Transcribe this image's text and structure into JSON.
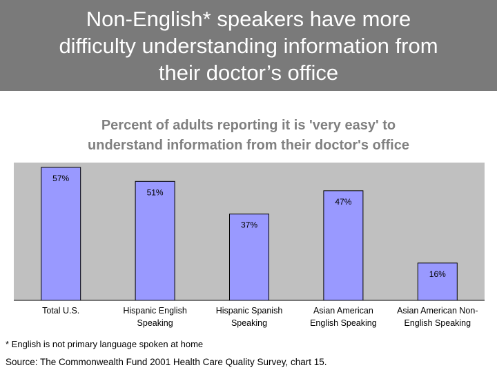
{
  "header": {
    "title_line1": "Non-English* speakers have more",
    "title_line2": "difficulty understanding information from",
    "title_line3": "their doctor’s office"
  },
  "chart_data": {
    "type": "bar",
    "title_line1": "Percent of adults reporting it is 'very easy' to",
    "title_line2": "understand information from their doctor's office",
    "categories": [
      [
        "Total U.S."
      ],
      [
        "Hispanic English",
        "Speaking"
      ],
      [
        "Hispanic Spanish",
        "Speaking"
      ],
      [
        "Asian American",
        "English Speaking"
      ],
      [
        "Asian American Non-",
        "English Speaking"
      ]
    ],
    "values": [
      57,
      51,
      37,
      47,
      16
    ],
    "value_labels": [
      "57%",
      "51%",
      "37%",
      "47%",
      "16%"
    ],
    "ylim": [
      0,
      60
    ],
    "grid": false,
    "legend": "none",
    "colors": {
      "plot_area": "#c0c0c0",
      "bar_fill": "#9999ff",
      "bar_stroke": "#000000"
    }
  },
  "footnote": "* English is not primary language spoken at home",
  "source": "Source: The Commonwealth Fund 2001 Health Care Quality Survey, chart 15."
}
